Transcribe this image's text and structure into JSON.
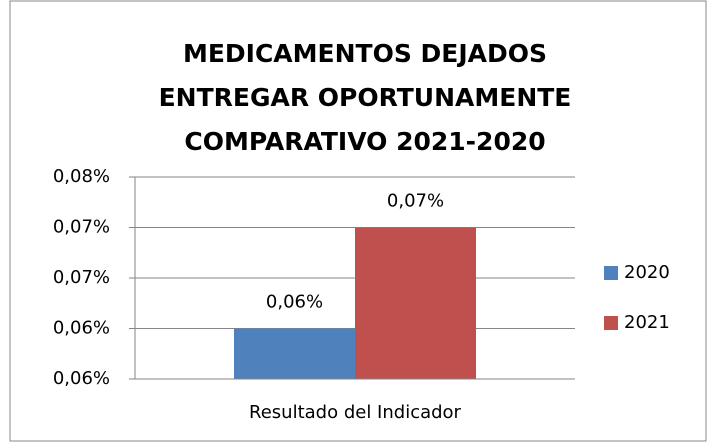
{
  "chart_data": {
    "type": "bar",
    "title": "MEDICAMENTOS DEJADOS\nENTREGAR OPORTUNAMENTE\nCOMPARATIVO 2021-2020",
    "categories": [
      "Resultado del Indicador"
    ],
    "series": [
      {
        "name": "2020",
        "color": "#4f81bd",
        "values": [
          0.06
        ],
        "value_labels": [
          "0,06%"
        ]
      },
      {
        "name": "2021",
        "color": "#c0504d",
        "values": [
          0.07
        ],
        "value_labels": [
          "0,07%"
        ]
      }
    ],
    "ylim": [
      0.055,
      0.075
    ],
    "yticks": [
      {
        "value": 0.055,
        "label": "0,06%"
      },
      {
        "value": 0.06,
        "label": "0,06%"
      },
      {
        "value": 0.065,
        "label": "0,07%"
      },
      {
        "value": 0.07,
        "label": "0,07%"
      },
      {
        "value": 0.075,
        "label": "0,08%"
      }
    ],
    "grid": true,
    "legend": "right"
  }
}
